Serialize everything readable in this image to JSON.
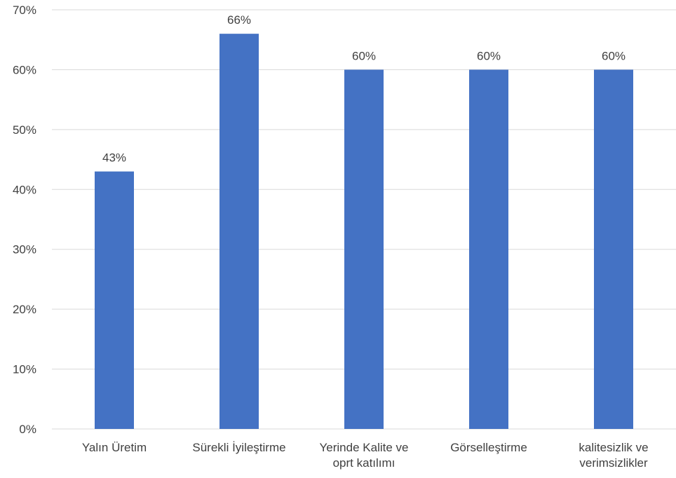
{
  "chart_data": {
    "type": "bar",
    "categories": [
      [
        "Yalın Üretim"
      ],
      [
        "Sürekli İyileştirme"
      ],
      [
        "Yerinde Kalite ve",
        "oprt katılımı"
      ],
      [
        "Görselleştirme"
      ],
      [
        "kalitesizlik ve",
        "verimsizlikler"
      ]
    ],
    "values": [
      43,
      66,
      60,
      60,
      60
    ],
    "data_labels": [
      "43%",
      "66%",
      "60%",
      "60%",
      "60%"
    ],
    "yticks": [
      "0%",
      "10%",
      "20%",
      "30%",
      "40%",
      "50%",
      "60%",
      "70%"
    ],
    "ylim": [
      0,
      70
    ],
    "title": "",
    "xlabel": "",
    "ylabel": "",
    "grid": true,
    "legend": "none",
    "colors": {
      "bar": "#4472C4",
      "grid": "#D9D9D9",
      "text": "#404040"
    }
  }
}
